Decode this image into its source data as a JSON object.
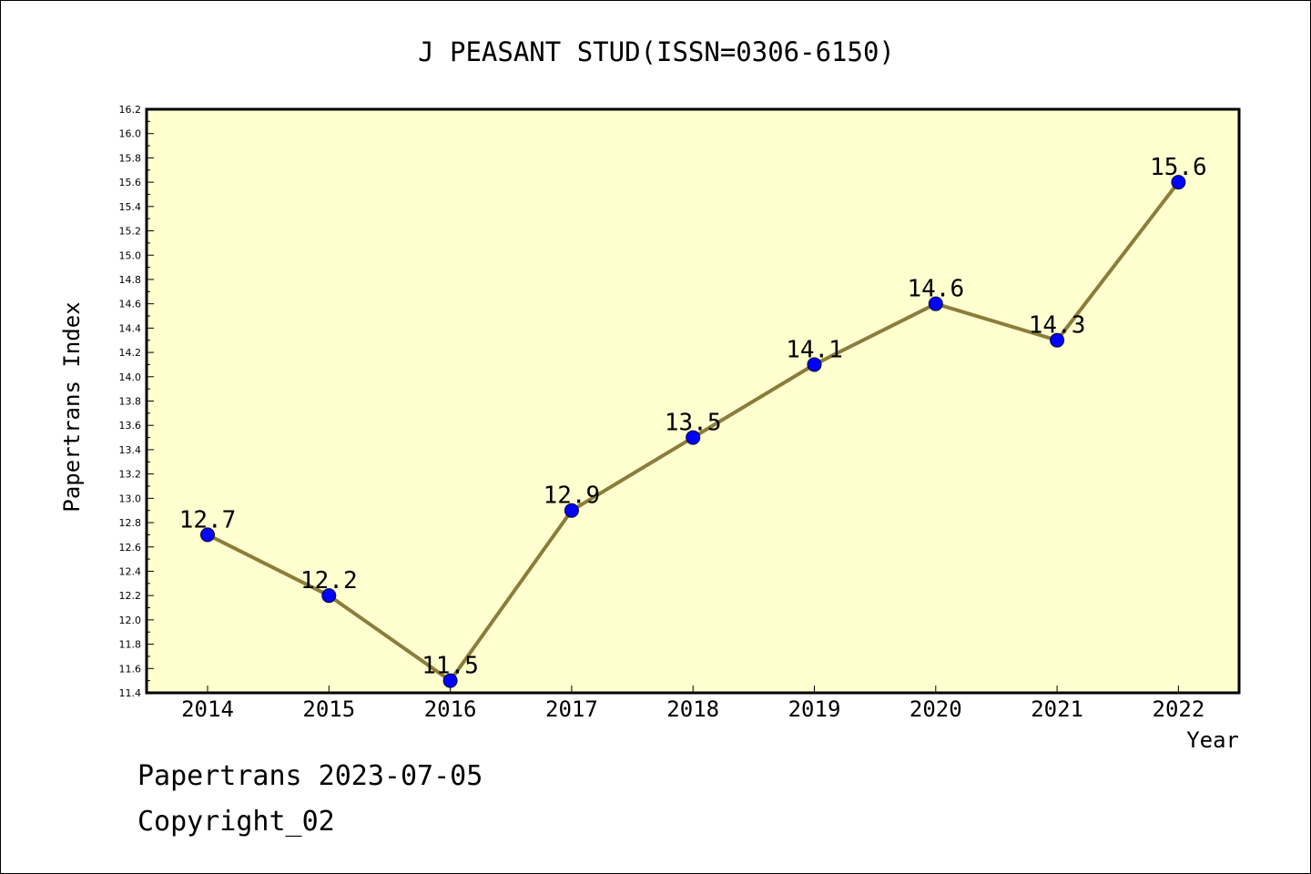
{
  "chart_data": {
    "type": "line",
    "title": "J PEASANT STUD(ISSN=0306-6150)",
    "xlabel": "Year",
    "ylabel": "Papertrans Index",
    "categories": [
      "2014",
      "2015",
      "2016",
      "2017",
      "2018",
      "2019",
      "2020",
      "2021",
      "2022"
    ],
    "series": [
      {
        "values": [
          12.7,
          12.2,
          11.5,
          12.9,
          13.5,
          14.1,
          14.6,
          14.3,
          15.6
        ],
        "data_labels": [
          "12.7",
          "12.2",
          "11.5",
          "12.9",
          "13.5",
          "14.1",
          "14.6",
          "14.3",
          "15.6"
        ]
      }
    ],
    "ylim": [
      11.4,
      16.2
    ],
    "yticks": [
      "11.4",
      "11.6",
      "11.8",
      "12.0",
      "12.2",
      "12.4",
      "12.6",
      "12.8",
      "13.0",
      "13.2",
      "13.4",
      "13.6",
      "13.8",
      "14.0",
      "14.2",
      "14.4",
      "14.6",
      "14.8",
      "15.0",
      "15.2",
      "15.4",
      "15.6",
      "15.8",
      "16.0",
      "16.2"
    ],
    "grid": false,
    "legend": "none",
    "colors": {
      "plot_background": "#ffffd0",
      "line": "#8b7d3a",
      "marker": "#0000ff"
    }
  },
  "footer": {
    "date_line": "Papertrans 2023-07-05",
    "copyright_line": "Copyright_02"
  }
}
